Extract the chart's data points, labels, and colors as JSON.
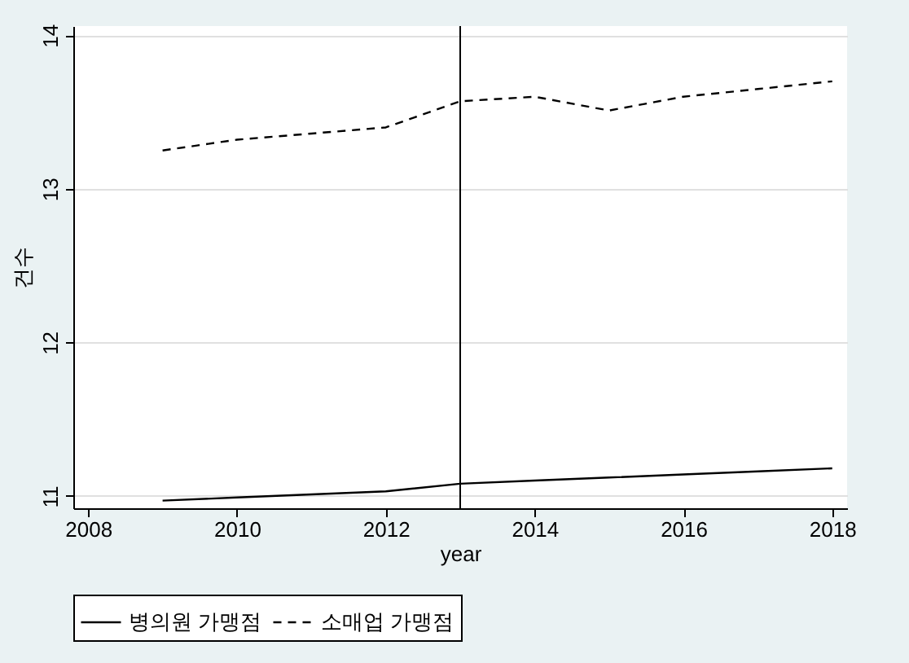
{
  "chart_data": {
    "type": "line",
    "xlabel": "year",
    "ylabel": "건수",
    "x": [
      2009,
      2010,
      2011,
      2012,
      2013,
      2014,
      2015,
      2016,
      2017,
      2018
    ],
    "series": [
      {
        "name": "병의원 가맹점",
        "color": "#000000",
        "line_style": "solid",
        "values": [
          10.97,
          10.99,
          11.01,
          11.03,
          11.08,
          11.1,
          11.12,
          11.14,
          11.16,
          11.18
        ]
      },
      {
        "name": "소매업 가맹점",
        "color": "#000000",
        "line_style": "dashed",
        "values": [
          13.25,
          13.32,
          13.36,
          13.4,
          13.57,
          13.6,
          13.51,
          13.6,
          13.65,
          13.7
        ]
      }
    ],
    "xlim": [
      2007.8,
      2018.2
    ],
    "xticks": [
      2008,
      2010,
      2012,
      2014,
      2016,
      2018
    ],
    "ylim": [
      10.92,
      14.06
    ],
    "yticks": [
      11,
      12,
      13,
      14
    ],
    "grid": "y",
    "legend": "bottom",
    "marker": "none",
    "ref_lines": [
      {
        "axis": "x",
        "value": 2013,
        "color": "#000000"
      }
    ]
  }
}
